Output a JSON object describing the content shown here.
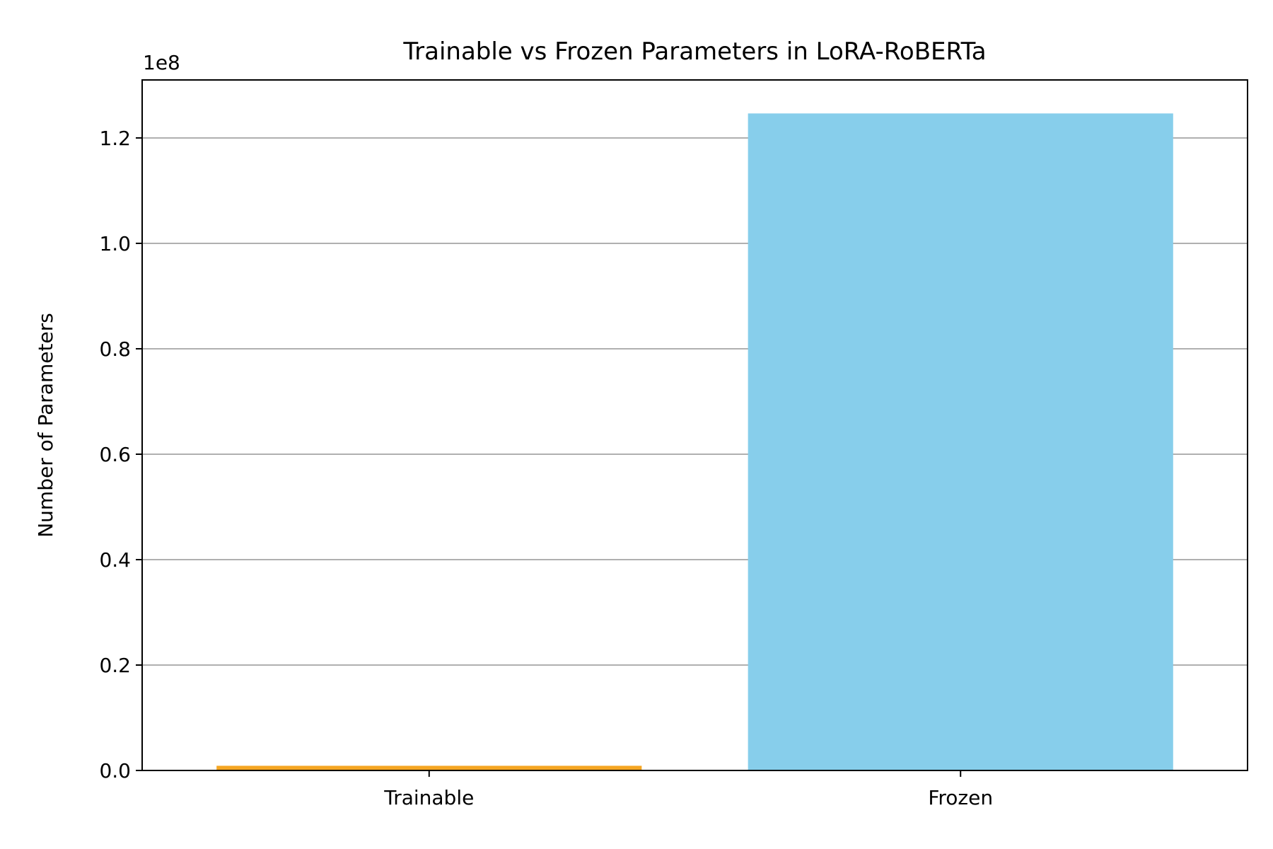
{
  "chart_data": {
    "type": "bar",
    "title": "Trainable vs Frozen Parameters in LoRA-RoBERTa",
    "xlabel": "",
    "ylabel": "Number of Parameters",
    "y_offset_label": "1e8",
    "categories": [
      "Trainable",
      "Frozen"
    ],
    "values": [
      887042,
      124645632
    ],
    "colors": [
      "#F5A623",
      "#87CEEB"
    ],
    "ylim": [
      0,
      131000000
    ],
    "yticks": [
      0,
      20000000,
      40000000,
      60000000,
      80000000,
      100000000,
      120000000
    ],
    "ytick_labels": [
      "0.0",
      "0.2",
      "0.4",
      "0.6",
      "0.8",
      "1.0",
      "1.2"
    ],
    "grid": "y",
    "legend": "none"
  }
}
